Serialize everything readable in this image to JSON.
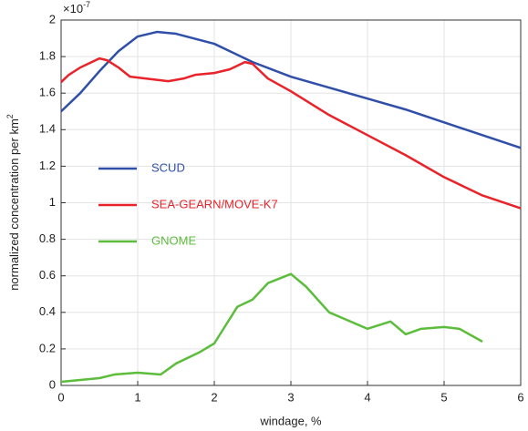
{
  "chart_data": {
    "type": "line",
    "xlabel": "windage, %",
    "ylabel": "normalized concentration per km",
    "ylabel_superscript": "2",
    "y_multiplier": {
      "base": "×10",
      "exponent": "-7"
    },
    "xlim": [
      0,
      6
    ],
    "xticks": [
      0,
      1,
      2,
      3,
      4,
      5,
      6
    ],
    "ylim": [
      0,
      2
    ],
    "yticks": [
      0,
      0.2,
      0.4,
      0.6,
      0.8,
      1,
      1.2,
      1.4,
      1.6,
      1.8,
      2
    ],
    "grid": true,
    "legend": "left",
    "series": [
      {
        "name": "SCUD",
        "color": "#2f4fa8",
        "x": [
          0,
          0.25,
          0.5,
          0.75,
          1,
          1.25,
          1.5,
          2,
          2.5,
          3,
          3.5,
          4,
          4.5,
          5,
          5.5,
          6
        ],
        "values": [
          1.5,
          1.6,
          1.72,
          1.83,
          1.91,
          1.935,
          1.925,
          1.87,
          1.77,
          1.69,
          1.63,
          1.57,
          1.51,
          1.44,
          1.37,
          1.3
        ]
      },
      {
        "name": "SEA-GEARN/MOVE-K7",
        "color": "#e8232a",
        "x": [
          0,
          0.1,
          0.25,
          0.5,
          0.6,
          0.75,
          0.9,
          1.1,
          1.3,
          1.4,
          1.6,
          1.75,
          2,
          2.2,
          2.4,
          2.5,
          2.7,
          3,
          3.5,
          4,
          4.5,
          5,
          5.5,
          6
        ],
        "values": [
          1.66,
          1.7,
          1.74,
          1.79,
          1.78,
          1.74,
          1.69,
          1.68,
          1.67,
          1.665,
          1.68,
          1.7,
          1.71,
          1.73,
          1.77,
          1.76,
          1.68,
          1.61,
          1.48,
          1.37,
          1.26,
          1.14,
          1.04,
          0.97
        ]
      },
      {
        "name": "GNOME",
        "color": "#5cbd3c",
        "x": [
          0,
          0.5,
          0.7,
          1,
          1.3,
          1.5,
          1.8,
          2,
          2.3,
          2.5,
          2.7,
          3,
          3.2,
          3.5,
          4,
          4.3,
          4.5,
          4.7,
          5,
          5.2,
          5.5
        ],
        "values": [
          0.02,
          0.04,
          0.06,
          0.07,
          0.06,
          0.12,
          0.18,
          0.23,
          0.43,
          0.47,
          0.56,
          0.61,
          0.54,
          0.4,
          0.31,
          0.35,
          0.28,
          0.31,
          0.32,
          0.31,
          0.24
        ]
      }
    ]
  }
}
